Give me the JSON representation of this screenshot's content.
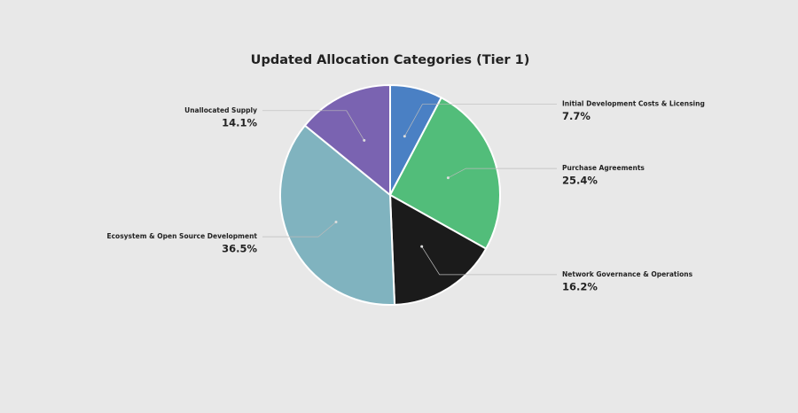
{
  "chart_data": {
    "type": "pie",
    "title": "Updated Allocation Categories (Tier 1)",
    "categories": [
      "Initial Development Costs & Licensing",
      "Purchase Agreements",
      "Network Governance & Operations",
      "Ecosystem & Open Source Development",
      "Unallocated Supply"
    ],
    "values": [
      7.7,
      25.4,
      16.2,
      36.5,
      14.1
    ],
    "value_labels": [
      "7.7%",
      "25.4%",
      "16.2%",
      "36.5%",
      "14.1%"
    ],
    "colors": [
      "#4a80c4",
      "#52bd7a",
      "#1b1b1b",
      "#80b3bf",
      "#7a63b1"
    ]
  }
}
